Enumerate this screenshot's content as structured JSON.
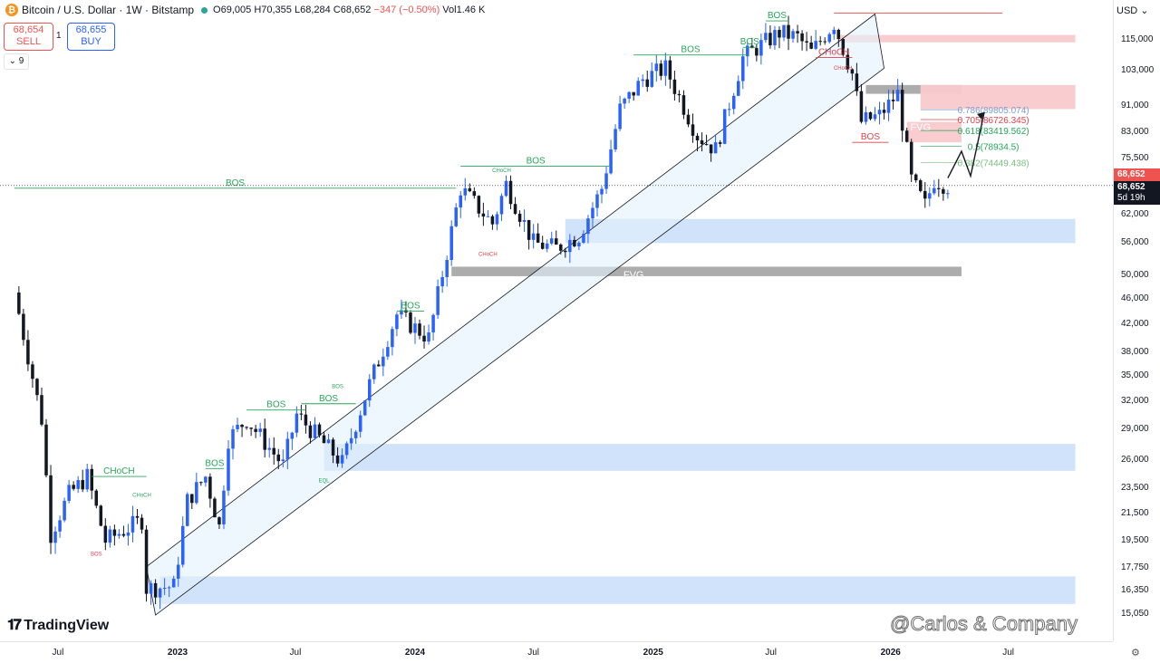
{
  "header": {
    "symbol_title": "Bitcoin / U.S. Dollar · 1W · Bitstamp",
    "logo_glyph": "₿",
    "ohlc": {
      "open": "O69,005",
      "high": "H70,355",
      "low": "L68,284",
      "close": "C68,652",
      "change": "−347 (−0.50%)",
      "volume": "Vol1.46 K"
    }
  },
  "trade": {
    "sell_price": "68,654",
    "sell_label": "SELL",
    "buy_price": "68,655",
    "buy_label": "BUY",
    "quantity": "1"
  },
  "indicators_badge": "9",
  "currency": "USD",
  "brand": "TradingView",
  "watermark": "@Carlos & Company",
  "current_price": {
    "value": "68,652",
    "label_red": "68,652",
    "countdown": "5d 19h"
  },
  "colors": {
    "bull": "#2962ff",
    "bear": "#131722",
    "zone_blue": "#cfe0fb",
    "zone_red": "#f9c9cc",
    "zone_gray": "#a3a3a3",
    "structure": "#26a65b",
    "fib_786": "#7a9fd9",
    "fib_705": "#e0424c",
    "fib_618": "#26a65b"
  },
  "chart_data": {
    "type": "candlestick",
    "timeframe": "1W",
    "y_axis_scale": "log",
    "y_ticks": [
      15050,
      16350,
      17750,
      19500,
      21500,
      23500,
      26000,
      29000,
      32000,
      35000,
      38000,
      42000,
      46000,
      50000,
      56000,
      62000,
      75500,
      83000,
      91000,
      103000,
      115000
    ],
    "y_tick_labels": [
      "15,050",
      "16,350",
      "17,750",
      "19,500",
      "21,500",
      "23,500",
      "26,000",
      "29,000",
      "32,000",
      "35,000",
      "38,000",
      "42,000",
      "46,000",
      "50,000",
      "56,000",
      "62,000",
      "75,500",
      "83,000",
      "91,000",
      "103,000",
      "115,000"
    ],
    "x_tick_labels": [
      {
        "label": "Jul",
        "date": "2022-07",
        "year": false
      },
      {
        "label": "2023",
        "date": "2023-01",
        "year": true
      },
      {
        "label": "Jul",
        "date": "2023-07",
        "year": false
      },
      {
        "label": "2024",
        "date": "2024-01",
        "year": true
      },
      {
        "label": "Jul",
        "date": "2024-07",
        "year": false
      },
      {
        "label": "2025",
        "date": "2025-01",
        "year": true
      },
      {
        "label": "Jul",
        "date": "2025-07",
        "year": false
      },
      {
        "label": "2026",
        "date": "2026-01",
        "year": true
      },
      {
        "label": "Jul",
        "date": "2026-07",
        "year": false
      }
    ],
    "price_path": [
      [
        "2022-04-25",
        47000
      ],
      [
        "2022-06-06",
        30000
      ],
      [
        "2022-06-20",
        20000
      ],
      [
        "2022-07-18",
        23000
      ],
      [
        "2022-08-15",
        24500
      ],
      [
        "2022-09-12",
        19500
      ],
      [
        "2022-11-07",
        21000
      ],
      [
        "2022-11-14",
        16500
      ],
      [
        "2022-12-26",
        16600
      ],
      [
        "2023-01-16",
        22500
      ],
      [
        "2023-02-13",
        24500
      ],
      [
        "2023-03-06",
        20500
      ],
      [
        "2023-03-20",
        28000
      ],
      [
        "2023-04-17",
        30000
      ],
      [
        "2023-06-12",
        25500
      ],
      [
        "2023-07-03",
        30500
      ],
      [
        "2023-09-11",
        25700
      ],
      [
        "2023-10-23",
        34000
      ],
      [
        "2023-12-04",
        43500
      ],
      [
        "2024-01-22",
        40000
      ],
      [
        "2024-03-11",
        68000
      ],
      [
        "2024-04-29",
        60000
      ],
      [
        "2024-05-20",
        69000
      ],
      [
        "2024-07-01",
        56000
      ],
      [
        "2024-08-05",
        55000
      ],
      [
        "2024-09-09",
        57500
      ],
      [
        "2024-10-14",
        68000
      ],
      [
        "2024-11-11",
        90000
      ],
      [
        "2024-12-16",
        100000
      ],
      [
        "2025-01-20",
        104000
      ],
      [
        "2025-03-10",
        82000
      ],
      [
        "2025-04-07",
        78000
      ],
      [
        "2025-05-19",
        108000
      ],
      [
        "2025-07-14",
        118000
      ],
      [
        "2025-08-11",
        116000
      ],
      [
        "2025-09-01",
        110000
      ],
      [
        "2025-10-06",
        122000
      ],
      [
        "2025-11-03",
        102000
      ],
      [
        "2025-11-17",
        86000
      ],
      [
        "2025-12-15",
        88000
      ],
      [
        "2026-01-12",
        95000
      ],
      [
        "2026-02-02",
        70000
      ],
      [
        "2026-02-23",
        64000
      ],
      [
        "2026-03-09",
        70000
      ],
      [
        "2026-03-30",
        68652
      ]
    ],
    "zones": [
      {
        "name": "blue-zone-top",
        "kind": "blue",
        "from": "2024-08-19",
        "to": "2026-10-12",
        "y_top": 61000,
        "y_bottom": 56000
      },
      {
        "name": "blue-zone-mid",
        "kind": "blue",
        "from": "2023-08-14",
        "to": "2026-10-12",
        "y_top": 27500,
        "y_bottom": 25000
      },
      {
        "name": "blue-zone-bottom",
        "kind": "blue",
        "from": "2022-12-05",
        "to": "2026-10-12",
        "y_top": 17200,
        "y_bottom": 15600
      },
      {
        "name": "gray-fvg-zone",
        "kind": "gray",
        "from": "2024-02-26",
        "to": "2026-04-20",
        "y_top": 51500,
        "y_bottom": 49800
      },
      {
        "name": "gray-zone-upper",
        "kind": "gray",
        "from": "2025-11-24",
        "to": "2026-04-20",
        "y_top": 98000,
        "y_bottom": 95000
      },
      {
        "name": "red-zone-top",
        "kind": "red",
        "from": "2025-10-13",
        "to": "2026-10-12",
        "y_top": 117000,
        "y_bottom": 114000
      },
      {
        "name": "red-zone-right",
        "kind": "red",
        "from": "2026-02-16",
        "to": "2026-10-12",
        "y_top": 98000,
        "y_bottom": 90000
      },
      {
        "name": "red-fvg-zone",
        "kind": "red",
        "from": "2026-01-26",
        "to": "2026-04-20",
        "y_top": 86000,
        "y_bottom": 80000
      }
    ],
    "channel": {
      "upper": [
        [
          "2022-11-14",
          17800
        ],
        [
          "2025-12-08",
          126000
        ]
      ],
      "lower": [
        [
          "2022-11-28",
          15000
        ],
        [
          "2025-12-22",
          104000
        ]
      ]
    },
    "structure_lines": [
      {
        "label": "BOS",
        "color": "green",
        "from": "2022-04-25",
        "to": "2024-03-04",
        "y": 68000
      },
      {
        "label": "CHoCH",
        "color": "green",
        "from": "2022-08-22",
        "to": "2022-11-14",
        "y": 24500
      },
      {
        "label": "BOS",
        "color": "green",
        "from": "2023-02-13",
        "to": "2023-03-13",
        "y": 25200
      },
      {
        "label": "BOS",
        "color": "green",
        "from": "2023-04-17",
        "to": "2023-07-17",
        "y": 31000
      },
      {
        "label": "BOS",
        "color": "green",
        "from": "2023-07-10",
        "to": "2023-10-02",
        "y": 31700
      },
      {
        "label": "BOS",
        "color": "green",
        "from": "2023-12-04",
        "to": "2024-01-15",
        "y": 44000
      },
      {
        "label": "BOS",
        "color": "green",
        "from": "2024-03-11",
        "to": "2024-10-28",
        "y": 73500
      },
      {
        "label": "BOS",
        "color": "green",
        "from": "2024-12-02",
        "to": "2025-05-26",
        "y": 109000
      },
      {
        "label": "BOS",
        "color": "green",
        "from": "2025-05-19",
        "to": "2025-06-09",
        "y": 112000
      },
      {
        "label": "BOS",
        "color": "green",
        "from": "2025-06-23",
        "to": "2025-07-28",
        "y": 123000
      },
      {
        "label": "BOS",
        "color": "red",
        "from": "2025-11-03",
        "to": "2025-12-29",
        "y": 80000
      },
      {
        "label": "CHoCH",
        "color": "red",
        "from": "2025-09-08",
        "to": "2025-11-03",
        "y": 108000
      }
    ],
    "fibonacci": [
      {
        "ratio": "0.786",
        "price": "89805.074",
        "label": "0.786(89805.074)",
        "color": "#7a9fd9"
      },
      {
        "ratio": "0.705",
        "price": "86726.345",
        "label": "0.705(86726.345)",
        "color": "#e0424c"
      },
      {
        "ratio": "0.618",
        "price": "83419.562",
        "label": "0.618(83419.562)",
        "color": "#26a65b"
      },
      {
        "ratio": "0.5",
        "price": "78934.5",
        "label": "0.5(78934.5)",
        "color": "#26a65b"
      },
      {
        "ratio": "0.382",
        "price": "74449.438",
        "label": "0.382(74449.438)",
        "color": "#7bbf7d"
      }
    ],
    "small_labels": [
      {
        "text": "Weak High",
        "date": "2026-04-13",
        "y": 134000,
        "color": "#e0424c"
      },
      {
        "text": "CHoCH",
        "date": "2022-11-07",
        "y": 22800,
        "color": "#26a65b"
      },
      {
        "text": "BOS",
        "date": "2022-08-29",
        "y": 18500,
        "color": "#e0424c"
      },
      {
        "text": "BOS",
        "date": "2023-09-04",
        "y": 33500,
        "color": "#26a65b"
      },
      {
        "text": "EQL",
        "date": "2023-08-14",
        "y": 24000,
        "color": "#26a65b"
      },
      {
        "text": "CHoCH",
        "date": "2024-04-22",
        "y": 53500,
        "color": "#e0424c"
      },
      {
        "text": "CHoCH",
        "date": "2024-05-13",
        "y": 72000,
        "color": "#26a65b"
      },
      {
        "text": "CHoCH",
        "date": "2025-10-20",
        "y": 103500,
        "color": "#e0424c"
      },
      {
        "text": "FVG",
        "date": "2024-12-02",
        "y": 49500,
        "color": "#ffffff"
      },
      {
        "text": "FVG",
        "date": "2026-02-16",
        "y": 83500,
        "color": "#ffffff"
      }
    ],
    "projection": [
      [
        "2026-03-30",
        70500
      ],
      [
        "2026-04-20",
        77500
      ],
      [
        "2026-05-04",
        71000
      ],
      [
        "2026-05-25",
        89000
      ]
    ]
  }
}
